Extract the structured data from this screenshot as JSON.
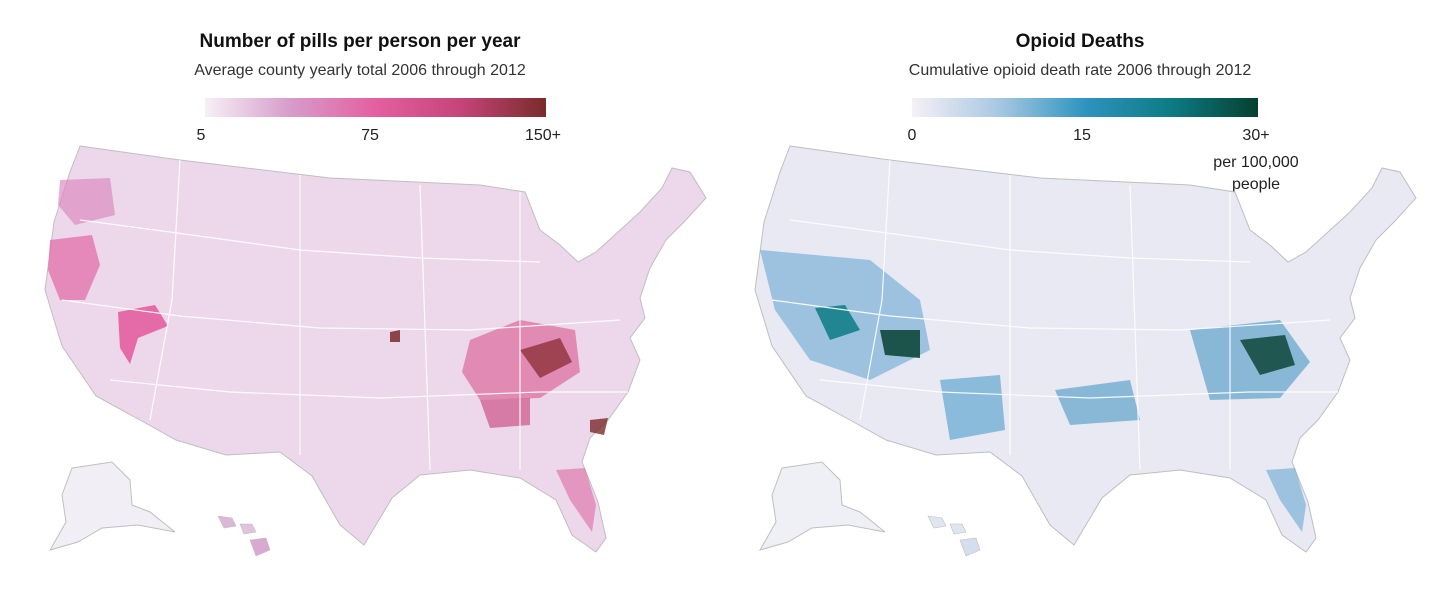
{
  "panels": {
    "pills": {
      "title": "Number of pills per person per year",
      "subtitle": "Average county yearly total 2006 through 2012",
      "legend": {
        "ticks": [
          "5",
          "75",
          "150+"
        ],
        "colors": [
          "#f6f0f6",
          "#d79ccb",
          "#e45fa0",
          "#c54479",
          "#7a2b2b"
        ]
      }
    },
    "deaths": {
      "title": "Opioid Deaths",
      "subtitle": "Cumulative opioid death rate 2006 through 2012",
      "legend": {
        "ticks": [
          "0",
          "15",
          "30+"
        ],
        "unit": [
          "per 100,000",
          "people"
        ],
        "colors": [
          "#f6f0f6",
          "#a8c8e2",
          "#2e94c0",
          "#0c7b84",
          "#06402f"
        ]
      }
    }
  },
  "map_style": {
    "border_color": "#bfbfbf",
    "base_pills": "#ecd8ea",
    "base_deaths": "#dfe3f1"
  }
}
